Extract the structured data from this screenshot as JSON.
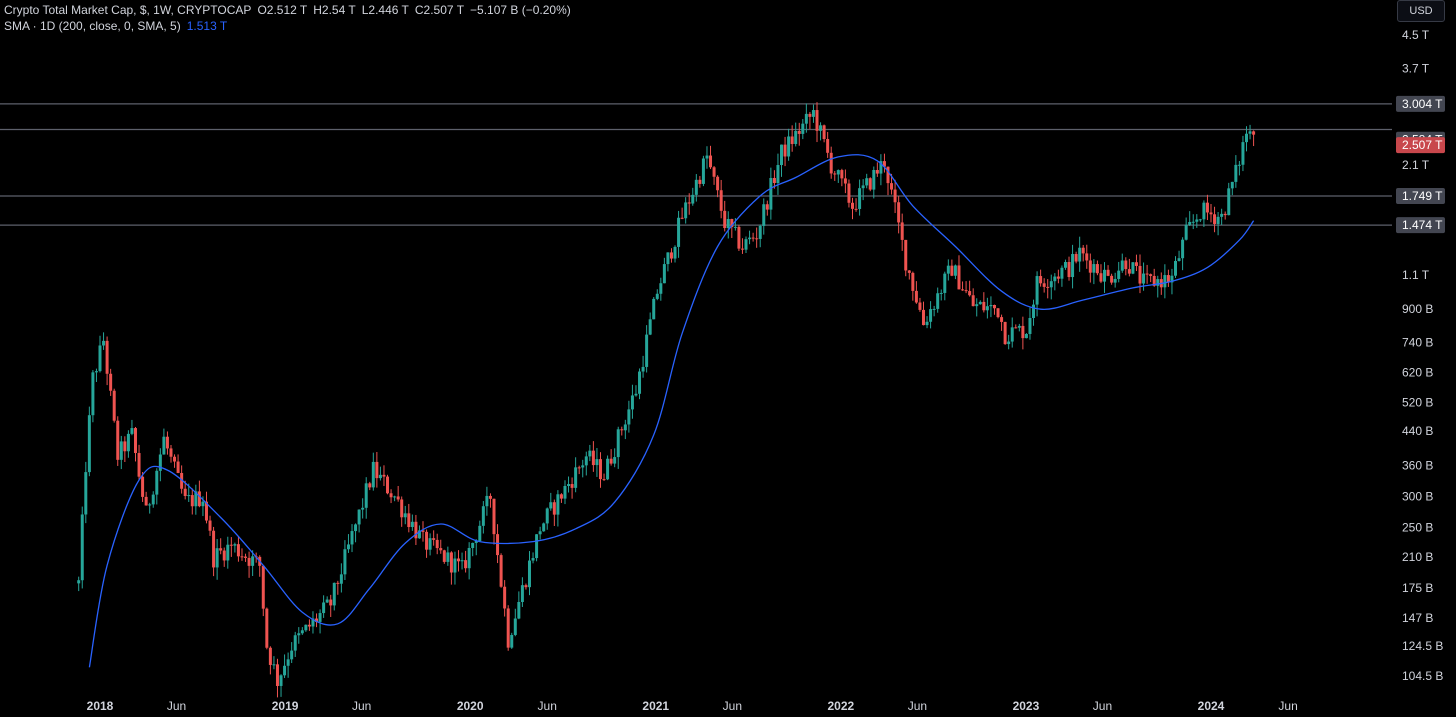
{
  "legend": {
    "title": "Crypto Total Market Cap, $, 1W, CRYPTOCAP",
    "open": "O2.512 T",
    "high": "H2.54 T",
    "low": "L2.446 T",
    "close": "C2.507 T",
    "change": "−5.107 B (−0.20%)",
    "sma_label": "SMA · 1D (200, close, 0, SMA, 5)",
    "sma_value": "1.513 T"
  },
  "currency": "USD",
  "colors": {
    "up": "#26a69a",
    "down": "#ef5350",
    "sma": "#2962ff",
    "hline": "#5d606b",
    "current_price": "#c8474c",
    "label_bg": "#434651"
  },
  "chart_data": {
    "type": "candlestick",
    "scale": "log",
    "x_ticks": [
      "2018",
      "Jun",
      "2019",
      "Jun",
      "2020",
      "Jun",
      "2021",
      "Jun",
      "2022",
      "Jun",
      "2023",
      "Jun",
      "2024",
      "Jun"
    ],
    "y_ticks": [
      "4.5 T",
      "3.7 T",
      "2.1 T",
      "1.1 T",
      "900 B",
      "740 B",
      "620 B",
      "520 B",
      "440 B",
      "360 B",
      "300 B",
      "250 B",
      "210 B",
      "175 B",
      "147 B",
      "124.5 B",
      "104.5 B"
    ],
    "y_tick_values": [
      4500,
      3700,
      2100,
      1100,
      900,
      740,
      620,
      520,
      440,
      360,
      300,
      250,
      210,
      175,
      147,
      124.5,
      104.5
    ],
    "horizontal_levels": [
      {
        "value": 3004,
        "label": "3.004 T"
      },
      {
        "value": 2584,
        "label": "2.584 T"
      },
      {
        "value": 1749,
        "label": "1.749 T"
      },
      {
        "value": 1474,
        "label": "1.474 T"
      }
    ],
    "current_price": {
      "value": 2507,
      "label": "2.507 T"
    },
    "price_anchors": [
      [
        "2017-11-20",
        180
      ],
      [
        "2017-12-04",
        360
      ],
      [
        "2017-12-18",
        600
      ],
      [
        "2018-01-08",
        750
      ],
      [
        "2018-02-05",
        380
      ],
      [
        "2018-03-05",
        430
      ],
      [
        "2018-04-02",
        270
      ],
      [
        "2018-05-07",
        420
      ],
      [
        "2018-06-18",
        290
      ],
      [
        "2018-07-23",
        300
      ],
      [
        "2018-08-13",
        210
      ],
      [
        "2018-09-17",
        225
      ],
      [
        "2018-11-12",
        200
      ],
      [
        "2018-11-26",
        125
      ],
      [
        "2018-12-17",
        102
      ],
      [
        "2019-01-14",
        125
      ],
      [
        "2019-04-01",
        160
      ],
      [
        "2019-06-24",
        350
      ],
      [
        "2019-08-05",
        300
      ],
      [
        "2019-09-30",
        230
      ],
      [
        "2019-12-16",
        195
      ],
      [
        "2020-02-10",
        300
      ],
      [
        "2020-03-16",
        130
      ],
      [
        "2020-05-18",
        250
      ],
      [
        "2020-08-17",
        380
      ],
      [
        "2020-09-21",
        340
      ],
      [
        "2020-11-23",
        560
      ],
      [
        "2021-01-04",
        1000
      ],
      [
        "2021-02-22",
        1550
      ],
      [
        "2021-04-12",
        2200
      ],
      [
        "2021-05-17",
        1500
      ],
      [
        "2021-06-21",
        1300
      ],
      [
        "2021-07-19",
        1400
      ],
      [
        "2021-09-06",
        2250
      ],
      [
        "2021-11-08",
        2850
      ],
      [
        "2021-12-13",
        2100
      ],
      [
        "2022-01-24",
        1650
      ],
      [
        "2022-03-28",
        2150
      ],
      [
        "2022-05-09",
        1200
      ],
      [
        "2022-06-13",
        830
      ],
      [
        "2022-08-08",
        1150
      ],
      [
        "2022-09-19",
        920
      ],
      [
        "2022-11-07",
        900
      ],
      [
        "2022-11-21",
        780
      ],
      [
        "2023-01-02",
        800
      ],
      [
        "2023-01-23",
        1050
      ],
      [
        "2023-03-27",
        1150
      ],
      [
        "2023-04-17",
        1250
      ],
      [
        "2023-06-12",
        1080
      ],
      [
        "2023-07-17",
        1200
      ],
      [
        "2023-08-21",
        1050
      ],
      [
        "2023-10-16",
        1080
      ],
      [
        "2023-11-13",
        1400
      ],
      [
        "2023-12-11",
        1600
      ],
      [
        "2024-01-22",
        1550
      ],
      [
        "2024-02-19",
        2000
      ],
      [
        "2024-03-11",
        2550
      ],
      [
        "2024-03-25",
        2507
      ]
    ],
    "sma_anchors": [
      [
        "2017-12-11",
        110
      ],
      [
        "2018-01-15",
        200
      ],
      [
        "2018-03-19",
        330
      ],
      [
        "2018-05-14",
        350
      ],
      [
        "2018-08-27",
        265
      ],
      [
        "2018-11-19",
        200
      ],
      [
        "2019-02-04",
        152
      ],
      [
        "2019-04-15",
        142
      ],
      [
        "2019-06-17",
        175
      ],
      [
        "2019-08-26",
        228
      ],
      [
        "2019-11-04",
        255
      ],
      [
        "2020-01-20",
        230
      ],
      [
        "2020-05-04",
        230
      ],
      [
        "2020-07-27",
        248
      ],
      [
        "2020-10-12",
        290
      ],
      [
        "2020-12-28",
        430
      ],
      [
        "2021-02-22",
        780
      ],
      [
        "2021-05-03",
        1300
      ],
      [
        "2021-07-26",
        1750
      ],
      [
        "2021-10-04",
        1950
      ],
      [
        "2021-12-27",
        2200
      ],
      [
        "2022-03-14",
        2150
      ],
      [
        "2022-05-23",
        1650
      ],
      [
        "2022-08-15",
        1300
      ],
      [
        "2022-11-14",
        1000
      ],
      [
        "2023-01-30",
        900
      ],
      [
        "2023-04-24",
        950
      ],
      [
        "2023-07-31",
        1020
      ],
      [
        "2023-10-16",
        1060
      ],
      [
        "2023-12-25",
        1150
      ],
      [
        "2024-02-26",
        1350
      ],
      [
        "2024-03-25",
        1513
      ]
    ]
  }
}
